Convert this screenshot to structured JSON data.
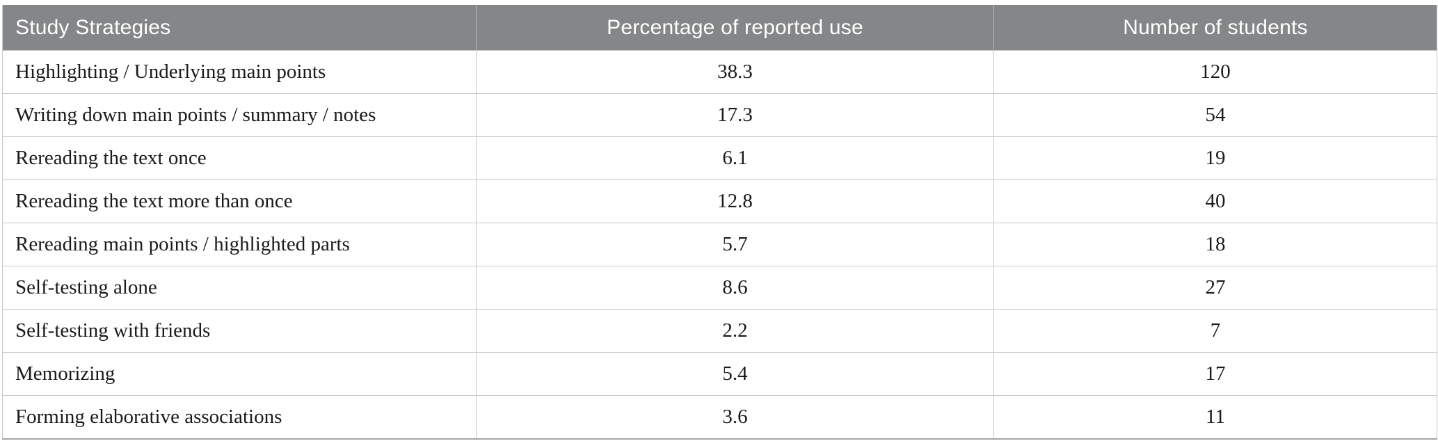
{
  "chart_data": {
    "type": "table",
    "columns": [
      {
        "key": "strategy",
        "label": "Study Strategies",
        "align": "left"
      },
      {
        "key": "percentage",
        "label": "Percentage of reported use",
        "align": "center"
      },
      {
        "key": "students",
        "label": "Number of students",
        "align": "center"
      }
    ],
    "rows": [
      [
        "Highlighting / Underlying main points",
        "38.3",
        "120"
      ],
      [
        "Writing down main points / summary / notes",
        "17.3",
        "54"
      ],
      [
        "Rereading the text once",
        "6.1",
        "19"
      ],
      [
        "Rereading the text more than once",
        "12.8",
        "40"
      ],
      [
        "Rereading main points / highlighted parts",
        "5.7",
        "18"
      ],
      [
        "Self-testing alone",
        "8.6",
        "27"
      ],
      [
        "Self-testing with friends",
        "2.2",
        "7"
      ],
      [
        "Memorizing",
        "5.4",
        "17"
      ],
      [
        "Forming elaborative associations",
        "3.6",
        "11"
      ]
    ]
  },
  "colors": {
    "header_bg": "#848688",
    "header_text": "#ffffff",
    "grid_border": "#c6c7c8",
    "outer_bottom_border": "#a3a6a8",
    "body_text": "#1a1a1a"
  }
}
